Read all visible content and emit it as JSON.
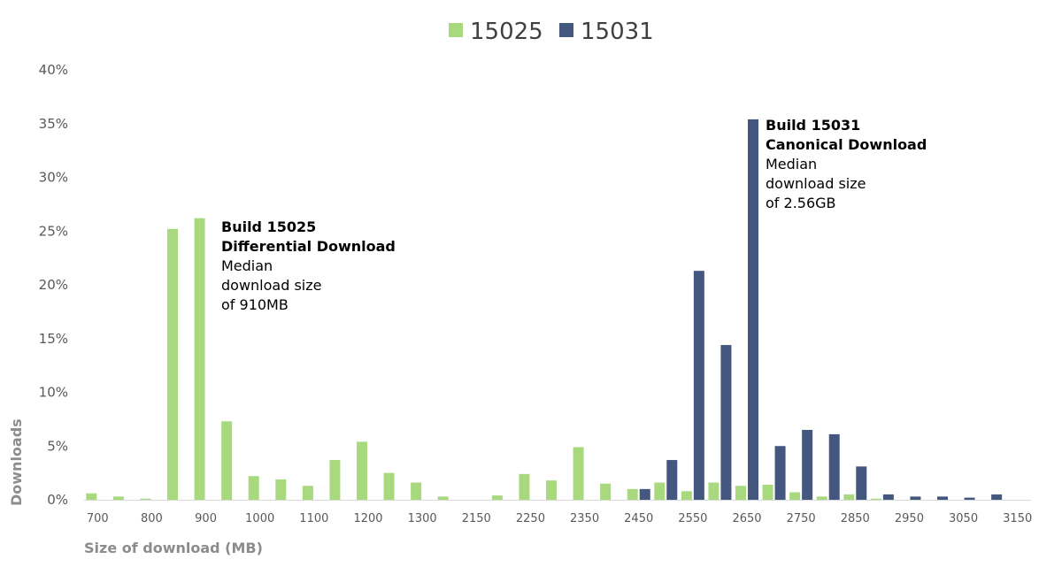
{
  "chart_data": {
    "type": "bar",
    "xlabel": "Size of download (MB)",
    "ylabel": "Downloads",
    "ylim": [
      0,
      40
    ],
    "y_ticks": [
      "0%",
      "5%",
      "10%",
      "15%",
      "20%",
      "25%",
      "30%",
      "35%",
      "40%"
    ],
    "x_tick_labels": [
      "700",
      "800",
      "900",
      "1000",
      "1100",
      "1200",
      "1300",
      "2150",
      "2250",
      "2350",
      "2450",
      "2550",
      "2650",
      "2750",
      "2850",
      "2950",
      "3050",
      "3150"
    ],
    "categories": [
      "700",
      "750",
      "800",
      "850",
      "900",
      "950",
      "1000",
      "1050",
      "1100",
      "1150",
      "1200",
      "1250",
      "1300",
      "1350",
      "2150",
      "2200",
      "2250",
      "2300",
      "2350",
      "2400",
      "2450",
      "2500",
      "2550",
      "2600",
      "2650",
      "2700",
      "2750",
      "2800",
      "2850",
      "2900",
      "2950",
      "3000",
      "3050",
      "3100",
      "3150"
    ],
    "series": [
      {
        "name": "15025",
        "color": "#a9d97e",
        "values": [
          0.6,
          0.3,
          0.1,
          25.2,
          26.2,
          7.3,
          2.2,
          1.9,
          1.3,
          3.7,
          5.4,
          2.5,
          1.6,
          0.3,
          0,
          0.4,
          2.4,
          1.8,
          4.9,
          1.5,
          1.0,
          1.6,
          0.8,
          1.6,
          1.3,
          1.4,
          0.7,
          0.3,
          0.5,
          0.1,
          0,
          0,
          0,
          0,
          0
        ]
      },
      {
        "name": "15031",
        "color": "#44577e",
        "values": [
          0,
          0,
          0,
          0,
          0,
          0,
          0,
          0,
          0,
          0,
          0,
          0,
          0,
          0,
          0,
          0,
          0,
          0,
          0,
          0,
          1.0,
          3.7,
          21.3,
          14.4,
          35.4,
          5.0,
          6.5,
          6.1,
          3.1,
          0.5,
          0.3,
          0.3,
          0.2,
          0.5,
          0
        ]
      }
    ],
    "legend": {
      "placement": "top-center"
    },
    "annotations": [
      {
        "title_lines": [
          "Build 15025",
          "Differential Download"
        ],
        "body_lines": [
          "Median",
          "download size",
          "of 910MB"
        ]
      },
      {
        "title_lines": [
          "Build 15031",
          "Canonical Download"
        ],
        "body_lines": [
          "Median",
          "download size",
          "of 2.56GB"
        ]
      }
    ],
    "grid": false
  }
}
